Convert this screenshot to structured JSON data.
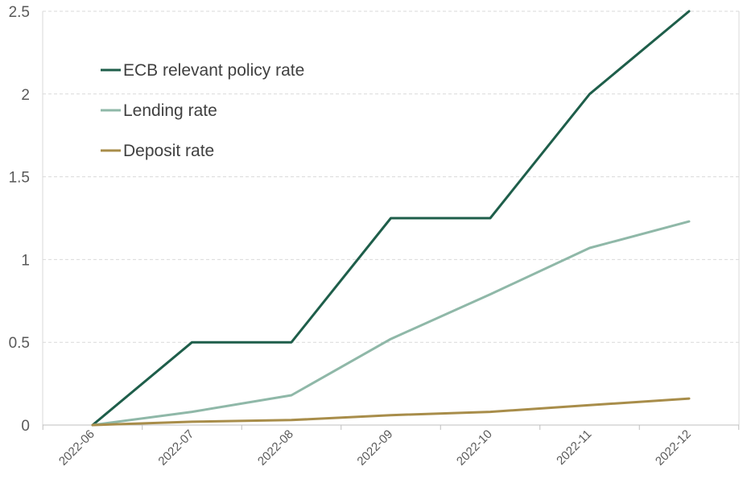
{
  "chart_data": {
    "type": "line",
    "title": "",
    "xlabel": "",
    "ylabel": "",
    "ylim": [
      0,
      2.5
    ],
    "yticks": [
      "0",
      "0.5",
      "1",
      "1.5",
      "2",
      "2.5"
    ],
    "grid": "horizontal dashed",
    "legend_position": "top-left",
    "categories": [
      "2022-06",
      "2022-07",
      "2022-08",
      "2022-09",
      "2022-10",
      "2022-11",
      "2022-12"
    ],
    "series": [
      {
        "name": "ECB relevant policy rate",
        "color": "#1e5e4a",
        "values": [
          0,
          0.5,
          0.5,
          1.25,
          1.25,
          2.0,
          2.5
        ]
      },
      {
        "name": "Lending rate",
        "color": "#8fb8a8",
        "values": [
          0,
          0.08,
          0.18,
          0.52,
          0.79,
          1.07,
          1.23
        ]
      },
      {
        "name": "Deposit rate",
        "color": "#a88d4a",
        "values": [
          0,
          0.02,
          0.03,
          0.06,
          0.08,
          0.12,
          0.16
        ]
      }
    ]
  }
}
